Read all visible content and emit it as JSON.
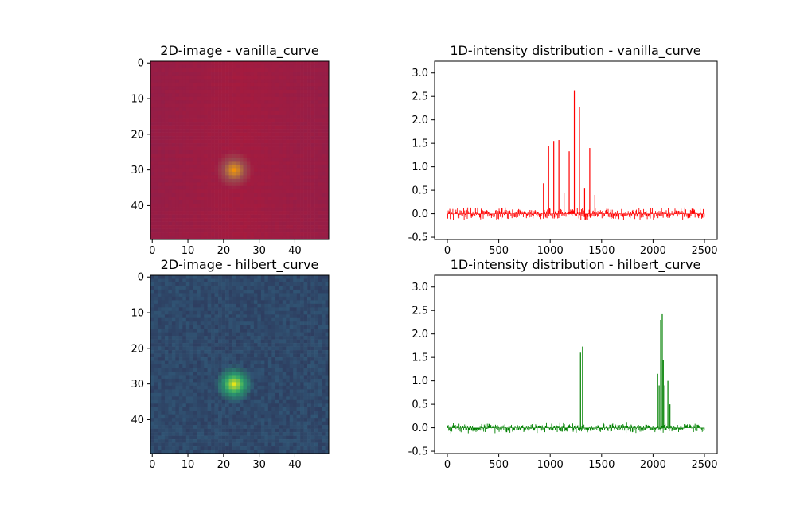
{
  "chart_data": [
    {
      "type": "heatmap",
      "title": "2D-image - vanilla_curve",
      "xlim": [
        0,
        49
      ],
      "ylim": [
        49,
        0
      ],
      "xticks": [
        0,
        10,
        20,
        30,
        40
      ],
      "yticks": [
        0,
        10,
        20,
        30,
        40
      ],
      "grid_size": 50,
      "colormap": "inferno-like (purple-red-orange)",
      "hotspot": {
        "x": 23,
        "y": 30,
        "extent": 6
      },
      "base_color": "#8c1f4c",
      "hot_color": "#f0900a"
    },
    {
      "type": "bar",
      "title": "1D-intensity distribution - vanilla_curve",
      "xlim": [
        0,
        2500
      ],
      "ylim": [
        -0.5,
        3.2
      ],
      "xticks": [
        0,
        500,
        1000,
        1500,
        2000,
        2500
      ],
      "yticks": [
        -0.5,
        0.0,
        0.5,
        1.0,
        1.5,
        2.0,
        2.5,
        3.0
      ],
      "color": "#ff0000",
      "series_peaks": [
        {
          "x": 930,
          "y": 0.65
        },
        {
          "x": 980,
          "y": 1.45
        },
        {
          "x": 1030,
          "y": 1.55
        },
        {
          "x": 1080,
          "y": 1.57
        },
        {
          "x": 1130,
          "y": 0.45
        },
        {
          "x": 1180,
          "y": 1.33
        },
        {
          "x": 1230,
          "y": 2.63
        },
        {
          "x": 1280,
          "y": 2.28
        },
        {
          "x": 1330,
          "y": 0.55
        },
        {
          "x": 1380,
          "y": 1.4
        },
        {
          "x": 1430,
          "y": 0.4
        }
      ],
      "noise_amplitude": 0.15
    },
    {
      "type": "heatmap",
      "title": "2D-image - hilbert_curve",
      "xlim": [
        0,
        49
      ],
      "ylim": [
        49,
        0
      ],
      "xticks": [
        0,
        10,
        20,
        30,
        40
      ],
      "yticks": [
        0,
        10,
        20,
        30,
        40
      ],
      "grid_size": 50,
      "colormap": "viridis",
      "hotspot": {
        "x": 23,
        "y": 30,
        "extent": 6
      },
      "base_color": "#3a4a78",
      "hot_color": "#e6e419"
    },
    {
      "type": "bar",
      "title": "1D-intensity distribution - hilbert_curve",
      "xlim": [
        0,
        2500
      ],
      "ylim": [
        -0.5,
        3.2
      ],
      "xticks": [
        0,
        500,
        1000,
        1500,
        2000,
        2500
      ],
      "yticks": [
        -0.5,
        0.0,
        0.5,
        1.0,
        1.5,
        2.0,
        2.5,
        3.0
      ],
      "color": "#008000",
      "series_peaks": [
        {
          "x": 1290,
          "y": 1.6
        },
        {
          "x": 1310,
          "y": 1.73
        },
        {
          "x": 2040,
          "y": 1.15
        },
        {
          "x": 2055,
          "y": 0.9
        },
        {
          "x": 2070,
          "y": 2.3
        },
        {
          "x": 2085,
          "y": 2.42
        },
        {
          "x": 2095,
          "y": 1.45
        },
        {
          "x": 2110,
          "y": 0.9
        },
        {
          "x": 2140,
          "y": 1.0
        },
        {
          "x": 2160,
          "y": 0.5
        }
      ],
      "noise_amplitude": 0.12
    }
  ]
}
